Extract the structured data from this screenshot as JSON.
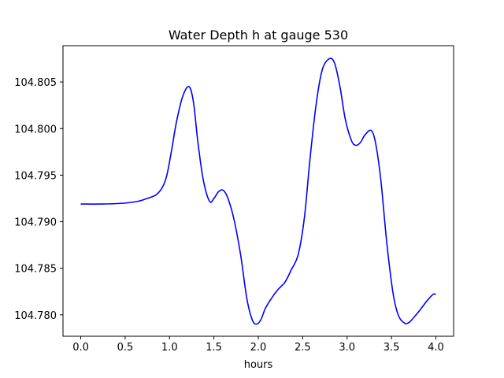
{
  "chart_data": {
    "type": "line",
    "title": "Water Depth h at gauge 530",
    "xlabel": "hours",
    "ylabel": "",
    "xlim": [
      -0.2,
      4.2
    ],
    "ylim": [
      104.7777,
      104.8089
    ],
    "xticks": [
      0.0,
      0.5,
      1.0,
      1.5,
      2.0,
      2.5,
      3.0,
      3.5,
      4.0
    ],
    "xtick_labels": [
      "0.0",
      "0.5",
      "1.0",
      "1.5",
      "2.0",
      "2.5",
      "3.0",
      "3.5",
      "4.0"
    ],
    "yticks": [
      104.78,
      104.785,
      104.79,
      104.795,
      104.8,
      104.805
    ],
    "ytick_labels": [
      "104.780",
      "104.785",
      "104.790",
      "104.795",
      "104.800",
      "104.805"
    ],
    "grid": false,
    "series": [
      {
        "color": "#0000ff",
        "x": [
          0.0,
          0.25,
          0.5,
          0.65,
          0.75,
          0.85,
          0.92,
          0.97,
          1.02,
          1.08,
          1.15,
          1.22,
          1.27,
          1.32,
          1.38,
          1.45,
          1.5,
          1.55,
          1.6,
          1.65,
          1.72,
          1.8,
          1.87,
          1.93,
          1.98,
          2.03,
          2.08,
          2.15,
          2.22,
          2.3,
          2.37,
          2.45,
          2.52,
          2.58,
          2.65,
          2.72,
          2.8,
          2.86,
          2.92,
          2.98,
          3.05,
          3.1,
          3.15,
          3.2,
          3.27,
          3.32,
          3.38,
          3.45,
          3.52,
          3.58,
          3.65,
          3.7,
          3.75,
          3.82,
          3.9,
          3.97,
          4.0
        ],
        "y": [
          104.7919,
          104.7919,
          104.792,
          104.7922,
          104.7925,
          104.7929,
          104.7937,
          104.795,
          104.7975,
          104.8008,
          104.8035,
          104.8045,
          104.8028,
          104.7985,
          104.7945,
          104.7922,
          104.7925,
          104.7932,
          104.7934,
          104.7927,
          104.7905,
          104.7865,
          104.7818,
          104.7795,
          104.779,
          104.7795,
          104.7807,
          104.7818,
          104.7827,
          104.7835,
          104.7848,
          104.7865,
          104.7905,
          104.7965,
          104.8025,
          104.8063,
          104.8075,
          104.807,
          104.8045,
          104.801,
          104.7987,
          104.7982,
          104.7985,
          104.7993,
          104.7998,
          104.7985,
          104.7945,
          104.7875,
          104.7822,
          104.7799,
          104.7791,
          104.7792,
          104.7797,
          104.7805,
          104.7815,
          104.7822,
          104.7822
        ]
      }
    ]
  }
}
